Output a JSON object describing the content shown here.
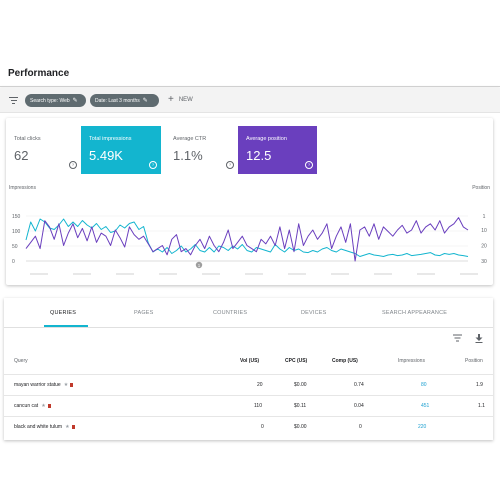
{
  "header": {
    "title": "Performance"
  },
  "filters": {
    "chips": [
      {
        "label": "Search type: Web",
        "icon": "pencil-icon"
      },
      {
        "label": "Date: Last 3 months",
        "icon": "pencil-icon"
      }
    ],
    "new_label": "NEW"
  },
  "metrics": [
    {
      "label": "Total clicks",
      "value": "62",
      "selected": false,
      "color": "#ffffff"
    },
    {
      "label": "Total impressions",
      "value": "5.49K",
      "selected": true,
      "color": "#13b5cf"
    },
    {
      "label": "Average CTR",
      "value": "1.1%",
      "selected": false,
      "color": "#ffffff"
    },
    {
      "label": "Average position",
      "value": "12.5",
      "selected": true,
      "color": "#6a3fbe"
    }
  ],
  "chart_data": {
    "type": "line",
    "left_axis_label": "Impressions",
    "right_axis_label": "Position",
    "left_ticks": [
      "150",
      "100",
      "50",
      "0"
    ],
    "right_ticks": [
      "1",
      "10",
      "20",
      "30"
    ],
    "left_ylim": [
      0,
      150
    ],
    "right_ylim": [
      1,
      30
    ],
    "right_axis_inverted": true,
    "series": [
      {
        "name": "Impressions",
        "color": "#13b5cf",
        "axis": "left",
        "values": [
          70,
          130,
          100,
          140,
          130,
          110,
          105,
          120,
          140,
          115,
          130,
          115,
          135,
          120,
          110,
          125,
          105,
          115,
          95,
          100,
          120,
          110,
          125,
          130,
          105,
          115,
          60,
          30,
          40,
          30,
          45,
          25,
          35,
          50,
          30,
          40,
          55,
          35,
          30,
          45,
          30,
          50,
          45,
          35,
          50,
          40,
          55,
          35,
          30,
          45,
          40,
          35,
          30,
          55,
          40,
          30,
          45,
          35,
          40,
          30,
          28,
          35,
          30,
          40,
          45,
          35,
          30,
          40,
          35,
          30,
          25,
          15,
          20,
          25,
          20,
          18,
          15,
          20,
          22,
          18,
          20,
          25,
          18,
          20,
          22,
          25,
          28,
          20,
          18,
          25,
          22,
          25,
          20,
          18,
          15
        ]
      },
      {
        "name": "Position",
        "color": "#6a3fbe",
        "axis": "right",
        "values": [
          22,
          18,
          14,
          22,
          4,
          8,
          16,
          6,
          20,
          12,
          6,
          15,
          9,
          17,
          8,
          18,
          12,
          14,
          20,
          10,
          15,
          21,
          8,
          13,
          16,
          14,
          19,
          24,
          22,
          20,
          26,
          16,
          13,
          24,
          22,
          26,
          20,
          16,
          22,
          14,
          20,
          24,
          18,
          10,
          22,
          18,
          14,
          20,
          22,
          24,
          16,
          19,
          14,
          20,
          8,
          22,
          10,
          24,
          6,
          20,
          14,
          10,
          16,
          12,
          6,
          22,
          14,
          8,
          18,
          6,
          30,
          10,
          8,
          14,
          6,
          16,
          8,
          11,
          14,
          10,
          7,
          12,
          10,
          4,
          12,
          8,
          6,
          10,
          4,
          12,
          8,
          6,
          2,
          8,
          10
        ]
      }
    ],
    "grid": true
  },
  "table": {
    "tabs": [
      "QUERIES",
      "PAGES",
      "COUNTRIES",
      "DEVICES",
      "SEARCH APPEARANCE"
    ],
    "active_tab": "QUERIES",
    "columns": [
      "Query",
      "Vol (US)",
      "CPC (US)",
      "Comp (US)",
      "Impressions",
      "Position"
    ],
    "rows": [
      {
        "query": "mayan warrior statue",
        "vol": "20",
        "cpc": "$0.00",
        "comp": "0.74",
        "impressions": "80",
        "position": "1.9"
      },
      {
        "query": "cancun cat",
        "vol": "110",
        "cpc": "$0.11",
        "comp": "0.04",
        "impressions": "451",
        "position": "1.1"
      },
      {
        "query": "black and white tulum",
        "vol": "0",
        "cpc": "$0.00",
        "comp": "0",
        "impressions": "220",
        "position": ""
      }
    ]
  }
}
